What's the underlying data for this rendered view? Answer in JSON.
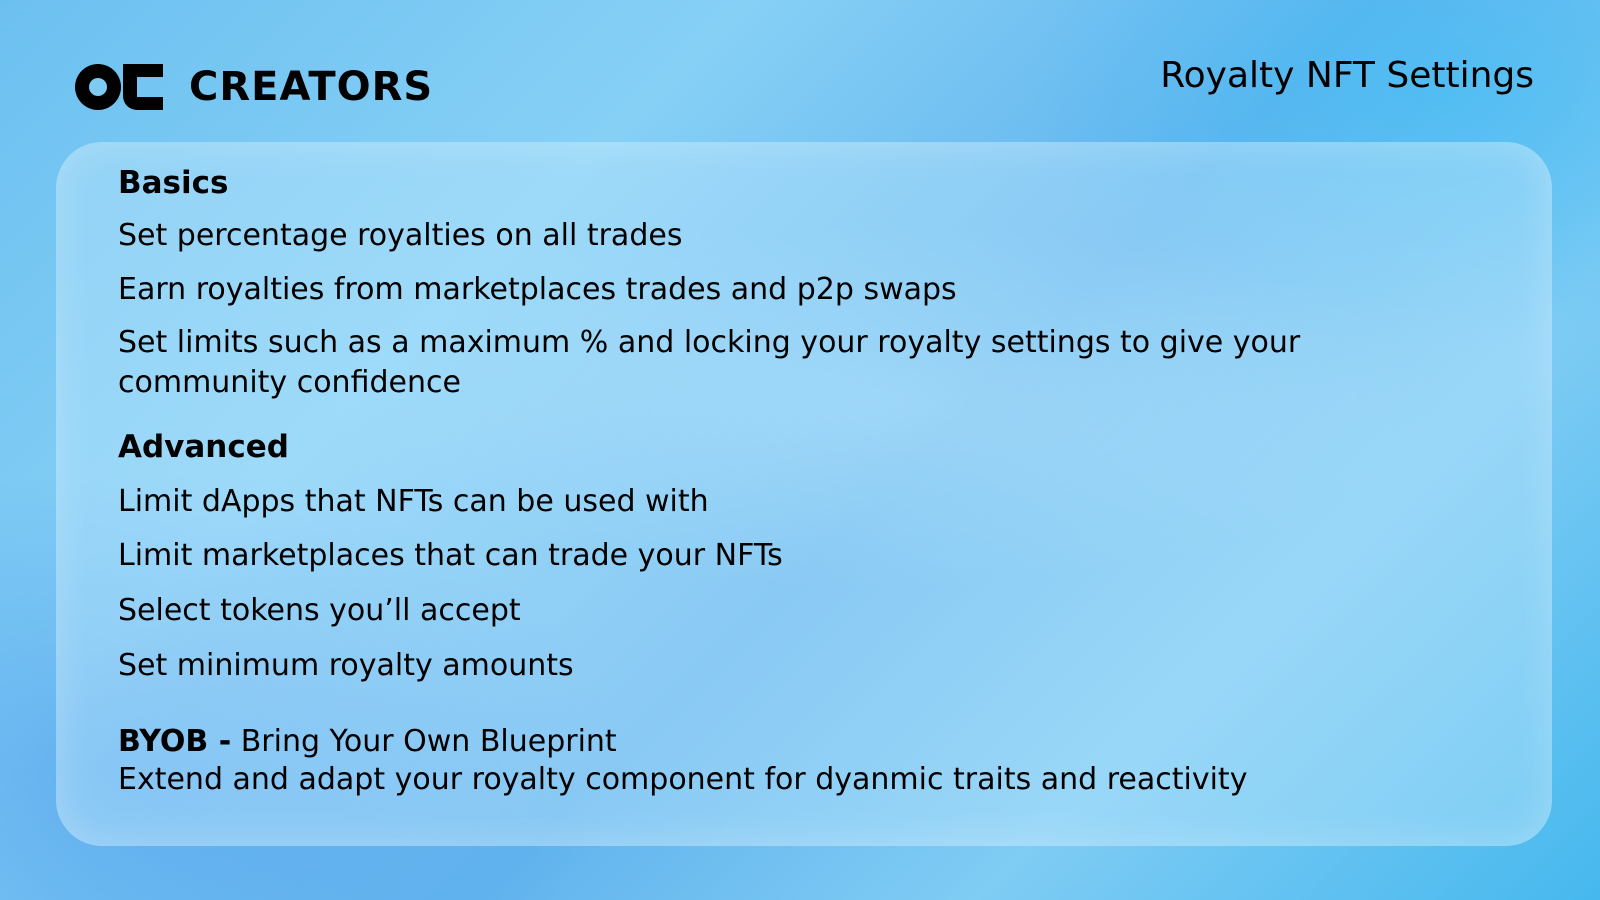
{
  "header": {
    "brand": "CREATORS",
    "slide_title": "Royalty NFT Settings"
  },
  "basics": {
    "heading": "Basics",
    "items": [
      "Set percentage royalties on all trades",
      "Earn royalties from marketplaces trades and p2p swaps",
      "Set limits such as a maximum % and locking your royalty settings to give your community confidence"
    ]
  },
  "advanced": {
    "heading": "Advanced",
    "items": [
      "Limit dApps that NFTs can be used with",
      "Limit marketplaces that can trade your NFTs",
      "Select tokens you’ll accept",
      "Set minimum royalty amounts"
    ]
  },
  "byob": {
    "label": "BYOB -",
    "title": "Bring Your Own Blueprint",
    "description": "Extend and adapt your royalty component for dyanmic traits and reactivity"
  }
}
